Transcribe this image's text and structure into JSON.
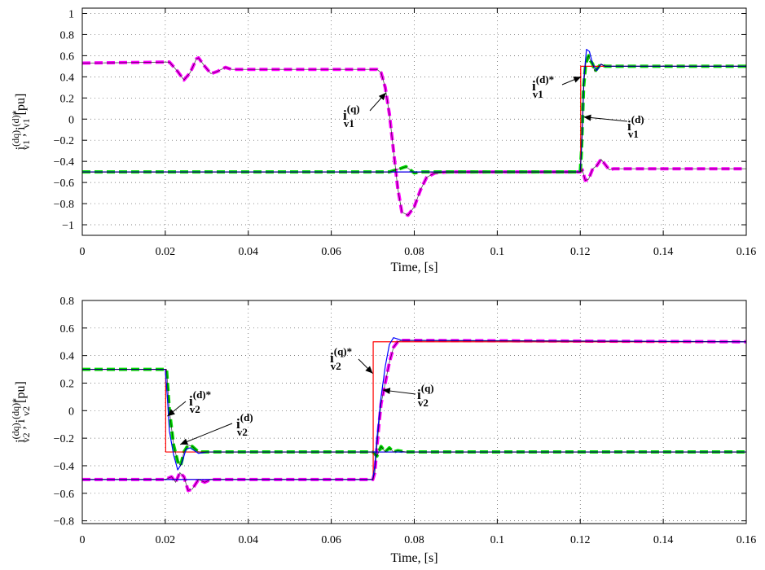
{
  "chart_data": [
    {
      "type": "line",
      "xlabel": "Time, [s]",
      "ylabel": {
        "main": "i",
        "sup1": "(dq)",
        "sub1": "v1",
        "sep": " , i",
        "sup2": "(d)*",
        "sub2": "v1",
        "unit": " [pu]"
      },
      "xlim": [
        0,
        0.16
      ],
      "ylim": [
        -1.1,
        1.05
      ],
      "x_ticks": [
        0,
        0.02,
        0.04,
        0.06,
        0.08,
        0.1,
        0.12,
        0.14,
        0.16
      ],
      "x_tick_labels": [
        "0",
        "0.02",
        "0.04",
        "0.06",
        "0.08",
        "0.1",
        "0.12",
        "0.14",
        "0.16"
      ],
      "y_ticks": [
        1,
        0.8,
        0.6,
        0.4,
        0.2,
        0,
        -0.2,
        -0.4,
        -0.6,
        -0.8,
        -1
      ],
      "y_tick_labels": [
        "1",
        "0.8",
        "0.6",
        "0.4",
        "0.2",
        "0",
        "−0.2",
        "−0.4",
        "−0.6",
        "−0.8",
        "−1"
      ],
      "grid": true,
      "series": [
        {
          "color": "#ff00ff",
          "style": "dashed-thick",
          "points": [
            [
              0,
              0.53
            ],
            [
              0.021,
              0.54
            ],
            [
              0.023,
              0.45
            ],
            [
              0.0245,
              0.37
            ],
            [
              0.026,
              0.44
            ],
            [
              0.0275,
              0.57
            ],
            [
              0.028,
              0.58
            ],
            [
              0.0295,
              0.5
            ],
            [
              0.031,
              0.43
            ],
            [
              0.0325,
              0.45
            ],
            [
              0.0345,
              0.49
            ],
            [
              0.036,
              0.47
            ],
            [
              0.05,
              0.47
            ],
            [
              0.071,
              0.47
            ],
            [
              0.072,
              0.44
            ],
            [
              0.073,
              0.3
            ],
            [
              0.074,
              0.05
            ],
            [
              0.075,
              -0.3
            ],
            [
              0.076,
              -0.65
            ],
            [
              0.077,
              -0.88
            ],
            [
              0.0785,
              -0.91
            ],
            [
              0.08,
              -0.83
            ],
            [
              0.0815,
              -0.67
            ],
            [
              0.083,
              -0.55
            ],
            [
              0.085,
              -0.51
            ],
            [
              0.088,
              -0.5
            ],
            [
              0.12,
              -0.5
            ],
            [
              0.1205,
              -0.48
            ],
            [
              0.1212,
              -0.58
            ],
            [
              0.122,
              -0.57
            ],
            [
              0.123,
              -0.47
            ],
            [
              0.124,
              -0.44
            ],
            [
              0.125,
              -0.38
            ],
            [
              0.126,
              -0.43
            ],
            [
              0.127,
              -0.48
            ],
            [
              0.128,
              -0.47
            ],
            [
              0.16,
              -0.47
            ]
          ]
        },
        {
          "color": "#00dd00",
          "style": "dashed-thick",
          "points": [
            [
              0,
              -0.5
            ],
            [
              0.072,
              -0.5
            ],
            [
              0.074,
              -0.5
            ],
            [
              0.0765,
              -0.47
            ],
            [
              0.078,
              -0.45
            ],
            [
              0.08,
              -0.51
            ],
            [
              0.082,
              -0.5
            ],
            [
              0.12,
              -0.5
            ],
            [
              0.1203,
              -0.3
            ],
            [
              0.1208,
              0.3
            ],
            [
              0.1213,
              0.52
            ],
            [
              0.122,
              0.6
            ],
            [
              0.1225,
              0.55
            ],
            [
              0.123,
              0.52
            ],
            [
              0.1235,
              0.45
            ],
            [
              0.1245,
              0.5
            ],
            [
              0.125,
              0.52
            ],
            [
              0.126,
              0.5
            ],
            [
              0.16,
              0.5
            ]
          ]
        },
        {
          "color": "#ff0000",
          "style": "solid-thin",
          "points": [
            [
              0,
              -0.5
            ],
            [
              0.1201,
              -0.5
            ],
            [
              0.1201,
              0.5
            ],
            [
              0.16,
              0.5
            ]
          ]
        },
        {
          "color": "#0000ff",
          "style": "solid-thin",
          "points": [
            [
              0,
              -0.5
            ],
            [
              0.12,
              -0.5
            ],
            [
              0.1204,
              -0.2
            ],
            [
              0.1209,
              0.4
            ],
            [
              0.1215,
              0.66
            ],
            [
              0.1222,
              0.64
            ],
            [
              0.123,
              0.52
            ],
            [
              0.124,
              0.46
            ],
            [
              0.125,
              0.52
            ],
            [
              0.126,
              0.5
            ],
            [
              0.16,
              0.5
            ]
          ]
        }
      ],
      "annotations": [
        {
          "main": "i",
          "sup": "(q)",
          "sub": "v1"
        },
        {
          "main": "i",
          "sup": "(d)*",
          "sub": "v1"
        },
        {
          "main": "i",
          "sup": "(d)",
          "sub": "v1"
        }
      ]
    },
    {
      "type": "line",
      "xlabel": "Time, [s]",
      "ylabel": {
        "main": "i",
        "sup1": "(dq)",
        "sub1": "v2",
        "sep": " , i",
        "sup2": "(dq)*",
        "sub2": "v2",
        "unit": " [pu]"
      },
      "xlim": [
        0,
        0.16
      ],
      "ylim": [
        -0.82,
        0.8
      ],
      "x_ticks": [
        0,
        0.02,
        0.04,
        0.06,
        0.08,
        0.1,
        0.12,
        0.14,
        0.16
      ],
      "x_tick_labels": [
        "0",
        "0.02",
        "0.04",
        "0.06",
        "0.08",
        "0.1",
        "0.12",
        "0.14",
        "0.16"
      ],
      "y_ticks": [
        0.8,
        0.6,
        0.4,
        0.2,
        0,
        -0.2,
        -0.4,
        -0.6,
        -0.8
      ],
      "y_tick_labels": [
        "0.8",
        "0.6",
        "0.4",
        "0.2",
        "0",
        "−0.2",
        "−0.4",
        "−0.6",
        "−0.8"
      ],
      "grid": true,
      "series": [
        {
          "color": "#ff00ff",
          "style": "dashed-thick",
          "points": [
            [
              0,
              -0.5
            ],
            [
              0.02,
              -0.5
            ],
            [
              0.0215,
              -0.48
            ],
            [
              0.0225,
              -0.52
            ],
            [
              0.0235,
              -0.45
            ],
            [
              0.0245,
              -0.48
            ],
            [
              0.0255,
              -0.58
            ],
            [
              0.0265,
              -0.57
            ],
            [
              0.028,
              -0.5
            ],
            [
              0.0295,
              -0.52
            ],
            [
              0.031,
              -0.5
            ],
            [
              0.033,
              -0.5
            ],
            [
              0.07,
              -0.5
            ],
            [
              0.0705,
              -0.45
            ],
            [
              0.071,
              -0.26
            ],
            [
              0.0715,
              -0.1
            ],
            [
              0.072,
              0.05
            ],
            [
              0.073,
              0.2
            ],
            [
              0.074,
              0.35
            ],
            [
              0.075,
              0.46
            ],
            [
              0.076,
              0.5
            ],
            [
              0.077,
              0.51
            ],
            [
              0.08,
              0.51
            ],
            [
              0.16,
              0.5
            ]
          ]
        },
        {
          "color": "#00dd00",
          "style": "dashed-thick",
          "points": [
            [
              0,
              0.3
            ],
            [
              0.0203,
              0.3
            ],
            [
              0.021,
              0.0
            ],
            [
              0.022,
              -0.25
            ],
            [
              0.023,
              -0.37
            ],
            [
              0.0237,
              -0.4
            ],
            [
              0.0245,
              -0.3
            ],
            [
              0.0255,
              -0.25
            ],
            [
              0.0265,
              -0.26
            ],
            [
              0.028,
              -0.3
            ],
            [
              0.03,
              -0.3
            ],
            [
              0.07,
              -0.3
            ],
            [
              0.071,
              -0.33
            ],
            [
              0.072,
              -0.26
            ],
            [
              0.073,
              -0.3
            ],
            [
              0.074,
              -0.27
            ],
            [
              0.075,
              -0.3
            ],
            [
              0.076,
              -0.29
            ],
            [
              0.078,
              -0.3
            ],
            [
              0.16,
              -0.3
            ]
          ]
        },
        {
          "color": "#ff0000",
          "style": "solid-thin",
          "points": [
            [
              0,
              0.3
            ],
            [
              0.0201,
              0.3
            ],
            [
              0.0201,
              -0.3
            ],
            [
              0.0701,
              -0.3
            ],
            [
              0.16,
              -0.3
            ],
            [
              0.16,
              -0.3
            ]
          ]
        },
        {
          "color": "#ff0000",
          "style": "solid-thin",
          "points": [
            [
              0,
              -0.5
            ],
            [
              0.0701,
              -0.5
            ],
            [
              0.0701,
              0.5
            ],
            [
              0.16,
              0.5
            ]
          ]
        },
        {
          "color": "#0000ff",
          "style": "solid-thin",
          "points": [
            [
              0,
              0.3
            ],
            [
              0.02,
              0.3
            ],
            [
              0.0205,
              0.1
            ],
            [
              0.021,
              -0.15
            ],
            [
              0.022,
              -0.32
            ],
            [
              0.023,
              -0.43
            ],
            [
              0.024,
              -0.38
            ],
            [
              0.025,
              -0.28
            ],
            [
              0.026,
              -0.27
            ],
            [
              0.028,
              -0.31
            ],
            [
              0.03,
              -0.3
            ],
            [
              0.16,
              -0.3
            ]
          ]
        },
        {
          "color": "#0000ff",
          "style": "solid-thin",
          "points": [
            [
              0,
              -0.5
            ],
            [
              0.07,
              -0.5
            ],
            [
              0.0705,
              -0.4
            ],
            [
              0.071,
              -0.2
            ],
            [
              0.072,
              0.1
            ],
            [
              0.073,
              0.32
            ],
            [
              0.074,
              0.48
            ],
            [
              0.075,
              0.53
            ],
            [
              0.076,
              0.52
            ],
            [
              0.077,
              0.51
            ],
            [
              0.16,
              0.5
            ]
          ]
        }
      ],
      "annotations": [
        {
          "main": "i",
          "sup": "(d)*",
          "sub": "v2"
        },
        {
          "main": "i",
          "sup": "(d)",
          "sub": "v2"
        },
        {
          "main": "i",
          "sup": "(q)*",
          "sub": "v2"
        },
        {
          "main": "i",
          "sup": "(q)",
          "sub": "v2"
        }
      ]
    }
  ]
}
